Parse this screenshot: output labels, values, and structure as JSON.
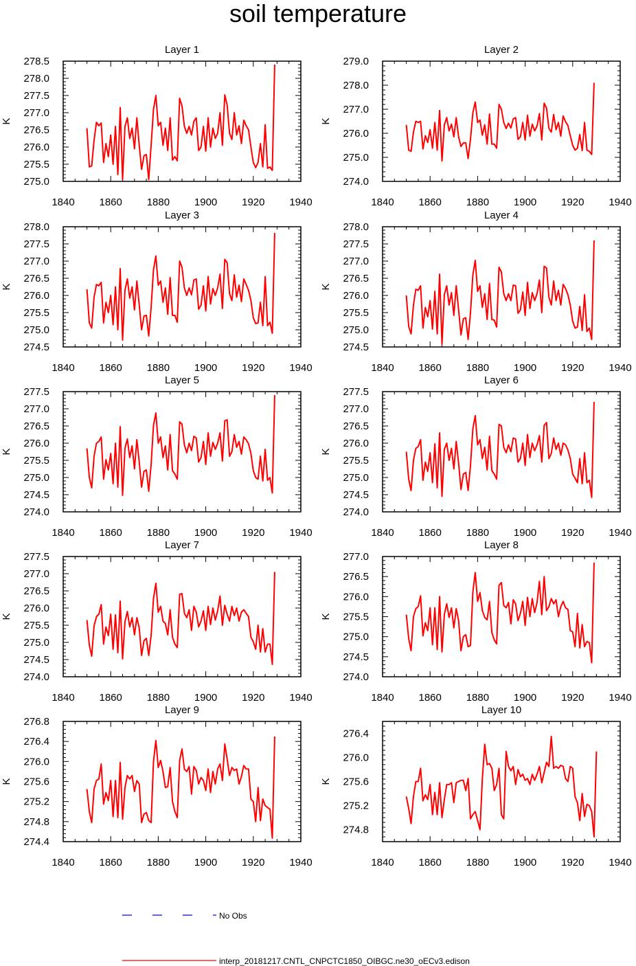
{
  "figure": {
    "title": "soil temperature",
    "legend": [
      {
        "label": "No Obs",
        "color": "#0000ff",
        "style": "dashed"
      },
      {
        "label": "interp_20181217.CNTL_CNPCTC1850_OIBGC.ne30_oECv3.edison",
        "color": "#ff0000",
        "style": "solid"
      }
    ]
  },
  "chart_data": [
    {
      "type": "line",
      "title": "Layer 1",
      "xlabel": "",
      "ylabel": "K",
      "xlim": [
        1840,
        1940
      ],
      "ylim": [
        275.0,
        278.5
      ],
      "xticks": [
        1840,
        1860,
        1880,
        1900,
        1920,
        1940
      ],
      "yticks": [
        275.0,
        275.5,
        276.0,
        276.5,
        277.0,
        277.5,
        278.0,
        278.5
      ],
      "ytick_labels": [
        "275.0",
        "275.5",
        "276.0",
        "276.5",
        "277.0",
        "277.5",
        "278.0",
        "278.5"
      ],
      "color": "#ff0000",
      "x_start": 1850,
      "values": [
        276.55,
        275.42,
        275.45,
        276.2,
        276.72,
        276.62,
        276.7,
        275.55,
        276.1,
        275.72,
        276.35,
        275.5,
        276.6,
        275.2,
        277.15,
        275.05,
        276.6,
        276.85,
        276.25,
        276.55,
        275.95,
        276.85,
        276.05,
        275.35,
        275.75,
        275.78,
        275.05,
        276.05,
        277.1,
        277.5,
        276.62,
        276.72,
        276.05,
        276.55,
        275.9,
        276.85,
        275.62,
        275.72,
        275.6,
        277.42,
        277.2,
        276.6,
        276.4,
        276.6,
        276.35,
        276.75,
        276.85,
        275.9,
        276.0,
        276.6,
        275.88,
        276.85,
        276.0,
        276.55,
        276.25,
        276.4,
        277.0,
        276.05,
        277.52,
        277.22,
        276.4,
        276.22,
        277.0,
        276.35,
        276.62,
        276.1,
        276.78,
        276.62,
        276.5,
        276.0,
        275.55,
        275.4,
        275.55,
        276.1,
        275.42,
        276.65,
        275.38,
        275.42,
        275.32,
        278.4
      ]
    },
    {
      "type": "line",
      "title": "Layer 2",
      "xlabel": "",
      "ylabel": "K",
      "xlim": [
        1840,
        1940
      ],
      "ylim": [
        274.0,
        279.0
      ],
      "xticks": [
        1840,
        1860,
        1880,
        1900,
        1920,
        1940
      ],
      "yticks": [
        274.0,
        275.0,
        276.0,
        277.0,
        278.0,
        279.0
      ],
      "ytick_labels": [
        "274.0",
        "275.0",
        "276.0",
        "277.0",
        "278.0",
        "279.0"
      ],
      "color": "#ff0000",
      "x_start": 1850,
      "values": [
        276.35,
        275.3,
        275.25,
        276.05,
        276.5,
        276.45,
        276.5,
        275.35,
        275.9,
        275.62,
        276.15,
        275.38,
        276.45,
        275.3,
        276.95,
        274.85,
        276.35,
        276.65,
        276.1,
        276.38,
        275.85,
        276.65,
        275.85,
        275.45,
        275.6,
        275.6,
        274.95,
        275.75,
        276.85,
        277.3,
        276.45,
        276.55,
        275.92,
        276.35,
        275.55,
        276.8,
        275.55,
        275.55,
        275.38,
        277.2,
        277.0,
        276.45,
        276.2,
        276.42,
        276.22,
        276.6,
        276.65,
        275.75,
        275.85,
        276.45,
        275.72,
        276.75,
        275.88,
        276.38,
        276.1,
        276.3,
        276.82,
        275.72,
        277.25,
        277.05,
        276.2,
        276.05,
        276.78,
        276.15,
        276.45,
        275.88,
        276.72,
        276.48,
        276.32,
        275.9,
        275.5,
        275.3,
        275.38,
        275.95,
        275.28,
        276.45,
        275.3,
        275.25,
        275.12,
        278.1
      ]
    },
    {
      "type": "line",
      "title": "Layer 3",
      "xlabel": "",
      "ylabel": "K",
      "xlim": [
        1840,
        1940
      ],
      "ylim": [
        274.5,
        278.0
      ],
      "xticks": [
        1840,
        1860,
        1880,
        1900,
        1920,
        1940
      ],
      "yticks": [
        274.5,
        275.0,
        275.5,
        276.0,
        276.5,
        277.0,
        277.5,
        278.0
      ],
      "ytick_labels": [
        "274.5",
        "275.0",
        "275.5",
        "276.0",
        "276.5",
        "277.0",
        "277.5",
        "278.0"
      ],
      "color": "#ff0000",
      "x_start": 1850,
      "values": [
        276.18,
        275.2,
        275.05,
        275.95,
        276.32,
        276.28,
        276.38,
        275.2,
        275.8,
        275.5,
        276.0,
        275.15,
        276.25,
        275.0,
        276.78,
        274.7,
        276.15,
        276.48,
        275.92,
        276.25,
        275.58,
        276.42,
        275.72,
        275.0,
        275.4,
        275.42,
        274.82,
        275.65,
        276.75,
        277.15,
        276.3,
        276.42,
        275.8,
        276.22,
        275.45,
        276.52,
        275.42,
        275.42,
        275.22,
        277.0,
        276.82,
        276.22,
        276.0,
        276.22,
        276.02,
        276.45,
        276.48,
        275.6,
        275.72,
        276.28,
        275.55,
        276.55,
        275.75,
        276.2,
        276.0,
        276.22,
        276.62,
        275.62,
        277.05,
        276.95,
        276.05,
        275.85,
        276.6,
        275.95,
        276.3,
        275.82,
        276.48,
        276.32,
        276.15,
        275.85,
        275.35,
        275.18,
        275.2,
        275.8,
        275.12,
        276.55,
        275.12,
        275.22,
        274.9,
        277.82
      ]
    },
    {
      "type": "line",
      "title": "Layer 4",
      "xlabel": "",
      "ylabel": "K",
      "xlim": [
        1840,
        1940
      ],
      "ylim": [
        274.5,
        278.0
      ],
      "xticks": [
        1840,
        1860,
        1880,
        1900,
        1920,
        1940
      ],
      "yticks": [
        274.5,
        275.0,
        275.5,
        276.0,
        276.5,
        277.0,
        277.5,
        278.0
      ],
      "ytick_labels": [
        "274.5",
        "275.0",
        "275.5",
        "276.0",
        "276.5",
        "277.0",
        "277.5",
        "278.0"
      ],
      "color": "#ff0000",
      "x_start": 1850,
      "values": [
        276.0,
        275.1,
        274.88,
        275.72,
        276.18,
        276.15,
        276.28,
        275.05,
        275.65,
        275.38,
        275.85,
        275.02,
        276.12,
        274.88,
        276.62,
        274.58,
        276.02,
        276.28,
        275.72,
        276.08,
        275.42,
        276.28,
        275.58,
        274.85,
        275.32,
        275.35,
        274.72,
        275.5,
        276.6,
        277.02,
        276.12,
        276.28,
        275.65,
        276.05,
        275.3,
        276.35,
        275.3,
        275.28,
        275.08,
        276.82,
        276.68,
        276.05,
        275.85,
        276.05,
        275.85,
        276.3,
        276.28,
        275.48,
        275.58,
        276.1,
        275.42,
        276.38,
        275.62,
        276.08,
        275.85,
        276.05,
        276.45,
        275.5,
        276.85,
        276.8,
        275.95,
        275.72,
        276.42,
        275.85,
        276.15,
        275.72,
        276.32,
        276.2,
        276.02,
        275.72,
        275.25,
        275.05,
        275.08,
        275.68,
        274.98,
        276.02,
        274.95,
        275.05,
        274.72,
        277.6
      ]
    },
    {
      "type": "line",
      "title": "Layer 5",
      "xlabel": "",
      "ylabel": "K",
      "xlim": [
        1840,
        1940
      ],
      "ylim": [
        274.0,
        277.5
      ],
      "xticks": [
        1840,
        1860,
        1880,
        1900,
        1920,
        1940
      ],
      "yticks": [
        274.0,
        274.5,
        275.0,
        275.5,
        276.0,
        276.5,
        277.0,
        277.5
      ],
      "ytick_labels": [
        "274.0",
        "274.5",
        "275.0",
        "275.5",
        "276.0",
        "276.5",
        "277.0",
        "277.5"
      ],
      "color": "#ff0000",
      "x_start": 1850,
      "values": [
        275.85,
        275.0,
        274.7,
        275.62,
        276.0,
        276.05,
        276.18,
        274.95,
        275.52,
        275.22,
        275.7,
        274.82,
        276.0,
        274.72,
        276.48,
        274.48,
        275.85,
        276.12,
        275.58,
        275.92,
        275.25,
        276.1,
        275.45,
        274.72,
        275.18,
        275.22,
        274.6,
        275.38,
        276.52,
        276.88,
        276.0,
        276.18,
        275.58,
        275.92,
        275.22,
        276.25,
        275.2,
        275.1,
        274.95,
        276.62,
        276.55,
        275.95,
        275.72,
        276.0,
        275.78,
        276.2,
        276.15,
        275.45,
        275.58,
        276.05,
        275.38,
        276.3,
        275.62,
        276.02,
        275.82,
        276.0,
        276.3,
        275.48,
        276.65,
        276.68,
        275.62,
        275.75,
        276.25,
        275.88,
        276.05,
        275.68,
        276.18,
        276.1,
        275.98,
        275.7,
        275.2,
        275.0,
        274.95,
        275.62,
        274.9,
        275.82,
        274.92,
        275.0,
        274.55,
        277.4
      ]
    },
    {
      "type": "line",
      "title": "Layer 6",
      "xlabel": "",
      "ylabel": "K",
      "xlim": [
        1840,
        1940
      ],
      "ylim": [
        274.0,
        277.5
      ],
      "xticks": [
        1840,
        1860,
        1880,
        1900,
        1920,
        1940
      ],
      "yticks": [
        274.0,
        274.5,
        275.0,
        275.5,
        276.0,
        276.5,
        277.0,
        277.5
      ],
      "ytick_labels": [
        "274.0",
        "274.5",
        "275.0",
        "275.5",
        "276.0",
        "276.5",
        "277.0",
        "277.5"
      ],
      "color": "#ff0000",
      "x_start": 1850,
      "values": [
        275.75,
        274.95,
        274.62,
        275.5,
        275.85,
        275.9,
        276.1,
        274.92,
        275.45,
        275.18,
        275.72,
        274.85,
        275.98,
        274.7,
        276.3,
        274.45,
        275.82,
        276.0,
        275.5,
        275.85,
        275.25,
        276.05,
        275.42,
        274.65,
        275.1,
        275.15,
        274.62,
        275.35,
        276.42,
        276.8,
        275.95,
        276.1,
        275.55,
        275.88,
        275.22,
        276.2,
        275.2,
        275.1,
        274.95,
        276.55,
        276.5,
        275.88,
        275.72,
        275.95,
        275.75,
        276.15,
        276.12,
        275.45,
        275.55,
        276.0,
        275.35,
        276.25,
        275.58,
        276.0,
        275.78,
        275.95,
        276.22,
        275.45,
        276.52,
        276.6,
        275.55,
        275.7,
        276.15,
        275.82,
        276.0,
        275.65,
        276.0,
        275.95,
        275.8,
        275.55,
        275.1,
        274.98,
        274.85,
        275.55,
        274.82,
        275.72,
        274.85,
        274.92,
        274.42,
        277.2
      ]
    },
    {
      "type": "line",
      "title": "Layer 7",
      "xlabel": "",
      "ylabel": "K",
      "xlim": [
        1840,
        1940
      ],
      "ylim": [
        274.0,
        277.5
      ],
      "xticks": [
        1840,
        1860,
        1880,
        1900,
        1920,
        1940
      ],
      "yticks": [
        274.0,
        274.5,
        275.0,
        275.5,
        276.0,
        276.5,
        277.0,
        277.5
      ],
      "ytick_labels": [
        "274.0",
        "274.5",
        "275.0",
        "275.5",
        "276.0",
        "276.5",
        "277.0",
        "277.5"
      ],
      "color": "#ff0000",
      "x_start": 1850,
      "values": [
        275.65,
        274.92,
        274.6,
        275.48,
        275.75,
        275.82,
        276.1,
        274.95,
        275.45,
        275.2,
        275.82,
        274.8,
        275.8,
        274.7,
        276.2,
        274.52,
        275.6,
        275.9,
        275.45,
        275.72,
        275.22,
        275.72,
        275.42,
        274.62,
        275.05,
        275.12,
        274.62,
        275.2,
        276.28,
        276.72,
        275.88,
        276.05,
        275.62,
        275.55,
        275.22,
        275.95,
        275.15,
        274.95,
        274.85,
        276.4,
        276.42,
        275.85,
        275.72,
        275.95,
        275.35,
        276.05,
        275.88,
        275.45,
        275.62,
        275.92,
        275.35,
        276.05,
        275.52,
        276.0,
        275.65,
        275.92,
        276.35,
        275.5,
        276.08,
        275.82,
        275.62,
        276.05,
        275.78,
        276.0,
        275.62,
        275.88,
        275.95,
        275.85,
        275.75,
        275.15,
        275.02,
        274.8,
        275.5,
        274.72,
        275.4,
        274.72,
        274.95,
        274.95,
        274.36,
        277.05
      ]
    },
    {
      "type": "line",
      "title": "Layer 8",
      "xlabel": "",
      "ylabel": "K",
      "xlim": [
        1840,
        1940
      ],
      "ylim": [
        274.0,
        277.0
      ],
      "xticks": [
        1840,
        1860,
        1880,
        1900,
        1920,
        1940
      ],
      "yticks": [
        274.0,
        274.5,
        275.0,
        275.5,
        276.0,
        276.5,
        277.0
      ],
      "ytick_labels": [
        "274.0",
        "274.5",
        "275.0",
        "275.5",
        "276.0",
        "276.5",
        "277.0"
      ],
      "color": "#ff0000",
      "x_start": 1850,
      "values": [
        275.55,
        274.95,
        274.65,
        275.5,
        275.7,
        275.75,
        276.02,
        275.02,
        275.35,
        275.15,
        275.72,
        274.8,
        275.72,
        274.68,
        276.0,
        274.62,
        275.55,
        275.82,
        275.48,
        275.72,
        275.22,
        275.7,
        275.4,
        274.65,
        275.0,
        275.05,
        274.75,
        274.78,
        276.12,
        276.6,
        275.88,
        276.1,
        275.65,
        275.48,
        275.42,
        275.88,
        275.1,
        274.92,
        274.82,
        276.28,
        276.35,
        275.78,
        275.72,
        275.85,
        275.32,
        275.92,
        275.82,
        275.4,
        275.58,
        275.88,
        275.28,
        275.98,
        275.5,
        275.95,
        275.6,
        275.85,
        276.38,
        275.55,
        276.5,
        275.65,
        275.75,
        275.95,
        275.82,
        275.92,
        275.5,
        275.75,
        275.88,
        275.72,
        275.68,
        275.15,
        275.12,
        274.75,
        275.58,
        274.72,
        275.3,
        274.75,
        274.88,
        274.85,
        274.35,
        276.85
      ]
    },
    {
      "type": "line",
      "title": "Layer 9",
      "xlabel": "",
      "ylabel": "K",
      "xlim": [
        1840,
        1940
      ],
      "ylim": [
        274.4,
        276.8
      ],
      "xticks": [
        1840,
        1860,
        1880,
        1900,
        1920,
        1940
      ],
      "yticks": [
        274.4,
        274.8,
        275.2,
        275.6,
        276.0,
        276.4,
        276.8
      ],
      "ytick_labels": [
        "274.4",
        "274.8",
        "275.2",
        "275.6",
        "276.0",
        "276.4",
        "276.8"
      ],
      "color": "#ff0000",
      "x_start": 1850,
      "values": [
        275.45,
        275.0,
        274.78,
        275.45,
        275.62,
        275.65,
        275.95,
        275.15,
        275.38,
        275.22,
        275.62,
        274.9,
        275.62,
        274.88,
        275.98,
        274.85,
        275.48,
        275.72,
        275.65,
        275.72,
        275.4,
        275.62,
        275.55,
        274.78,
        274.95,
        274.98,
        274.82,
        274.78,
        276.0,
        276.42,
        275.88,
        276.02,
        275.8,
        275.48,
        275.5,
        275.88,
        275.2,
        275.0,
        274.88,
        276.02,
        276.25,
        275.85,
        275.8,
        275.9,
        275.35,
        275.9,
        275.82,
        275.55,
        275.68,
        275.62,
        275.42,
        275.85,
        275.38,
        275.8,
        275.55,
        275.85,
        275.95,
        275.62,
        276.35,
        276.05,
        275.72,
        275.88,
        275.82,
        275.85,
        275.55,
        275.7,
        275.92,
        275.85,
        275.85,
        275.25,
        275.2,
        274.8,
        275.48,
        274.82,
        275.25,
        275.12,
        275.08,
        275.05,
        274.47,
        276.5
      ]
    },
    {
      "type": "line",
      "title": "Layer 10",
      "xlabel": "",
      "ylabel": "K",
      "xlim": [
        1840,
        1940
      ],
      "ylim": [
        274.6,
        276.6
      ],
      "xticks": [
        1840,
        1860,
        1880,
        1900,
        1920,
        1940
      ],
      "yticks": [
        274.8,
        275.2,
        275.6,
        276.0,
        276.4
      ],
      "ytick_labels": [
        "274.8",
        "275.2",
        "275.6",
        "276.0",
        "276.4"
      ],
      "color": "#ff0000",
      "x_start": 1850,
      "values": [
        275.35,
        275.15,
        274.9,
        275.35,
        275.6,
        275.6,
        275.82,
        275.28,
        275.38,
        275.3,
        275.55,
        275.05,
        275.42,
        275.05,
        275.58,
        275.0,
        275.3,
        275.55,
        275.55,
        275.58,
        275.25,
        275.58,
        275.6,
        275.62,
        275.62,
        275.45,
        275.65,
        274.98,
        275.05,
        275.1,
        274.95,
        274.8,
        275.65,
        276.22,
        275.88,
        275.9,
        275.82,
        275.45,
        275.55,
        275.82,
        275.05,
        274.98,
        276.1,
        275.85,
        275.78,
        275.85,
        275.55,
        275.8,
        275.68,
        275.72,
        275.62,
        275.65,
        275.55,
        275.72,
        275.62,
        275.72,
        275.85,
        275.58,
        275.75,
        275.92,
        275.85,
        276.35,
        275.82,
        275.85,
        275.82,
        275.87,
        275.85,
        275.65,
        275.6,
        275.85,
        275.82,
        275.35,
        275.25,
        274.95,
        275.4,
        275.02,
        275.22,
        275.2,
        275.1,
        274.68,
        276.1
      ]
    }
  ]
}
